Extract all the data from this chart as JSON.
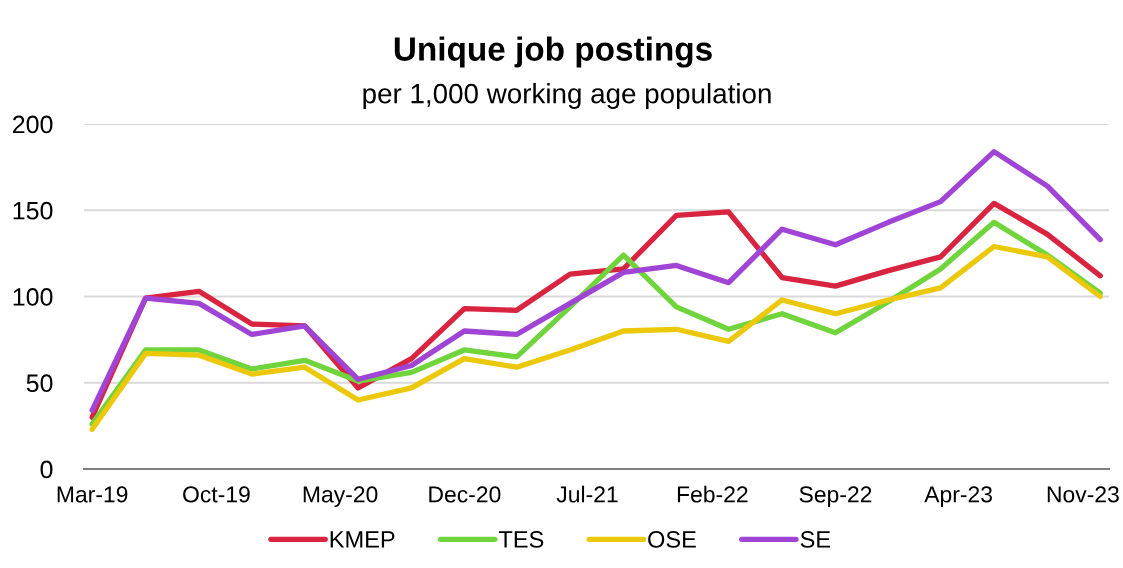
{
  "chart_data": {
    "type": "line",
    "title": "Unique job postings",
    "subtitle": "per 1,000 working age population",
    "x": [
      "2019-03",
      "2019-06",
      "2019-09",
      "2019-12",
      "2020-03",
      "2020-06",
      "2020-09",
      "2020-12",
      "2021-03",
      "2021-06",
      "2021-09",
      "2021-12",
      "2022-03",
      "2022-06",
      "2022-09",
      "2022-12",
      "2023-03",
      "2023-06",
      "2023-09",
      "2023-12"
    ],
    "xlim": [
      "2019-02-15",
      "2023-12-16"
    ],
    "xticks": [
      {
        "value": "2019-03",
        "label": "Mar-19"
      },
      {
        "value": "2019-10",
        "label": "Oct-19"
      },
      {
        "value": "2020-05",
        "label": "May-20"
      },
      {
        "value": "2020-12",
        "label": "Dec-20"
      },
      {
        "value": "2021-07",
        "label": "Jul-21"
      },
      {
        "value": "2022-02",
        "label": "Feb-22"
      },
      {
        "value": "2022-09",
        "label": "Sep-22"
      },
      {
        "value": "2023-04",
        "label": "Apr-23"
      },
      {
        "value": "2023-11",
        "label": "Nov-23"
      }
    ],
    "ylim": [
      0,
      200
    ],
    "yticks": [
      0,
      50,
      100,
      150,
      200
    ],
    "grid": "y",
    "legend": "bottom",
    "series": [
      {
        "name": "KMEP",
        "color": "#d9243f",
        "values": [
          30,
          99,
          103,
          84,
          83,
          47,
          64,
          93,
          92,
          113,
          116,
          147,
          149,
          111,
          106,
          115,
          123,
          154,
          136,
          112
        ]
      },
      {
        "name": "TES",
        "color": "#70d43c",
        "values": [
          26,
          69,
          69,
          58,
          63,
          51,
          56,
          69,
          65,
          94,
          124,
          94,
          81,
          90,
          79,
          97,
          116,
          143,
          124,
          102
        ]
      },
      {
        "name": "OSE",
        "color": "#ebc80a",
        "values": [
          23,
          67,
          66,
          55,
          59,
          40,
          47,
          64,
          59,
          69,
          80,
          81,
          74,
          98,
          90,
          98,
          105,
          129,
          123,
          100
        ]
      },
      {
        "name": "SE",
        "color": "#a044d6",
        "values": [
          34,
          99,
          96,
          78,
          83,
          52,
          60,
          80,
          78,
          96,
          114,
          118,
          108,
          139,
          130,
          143,
          155,
          184,
          164,
          133
        ]
      }
    ]
  }
}
